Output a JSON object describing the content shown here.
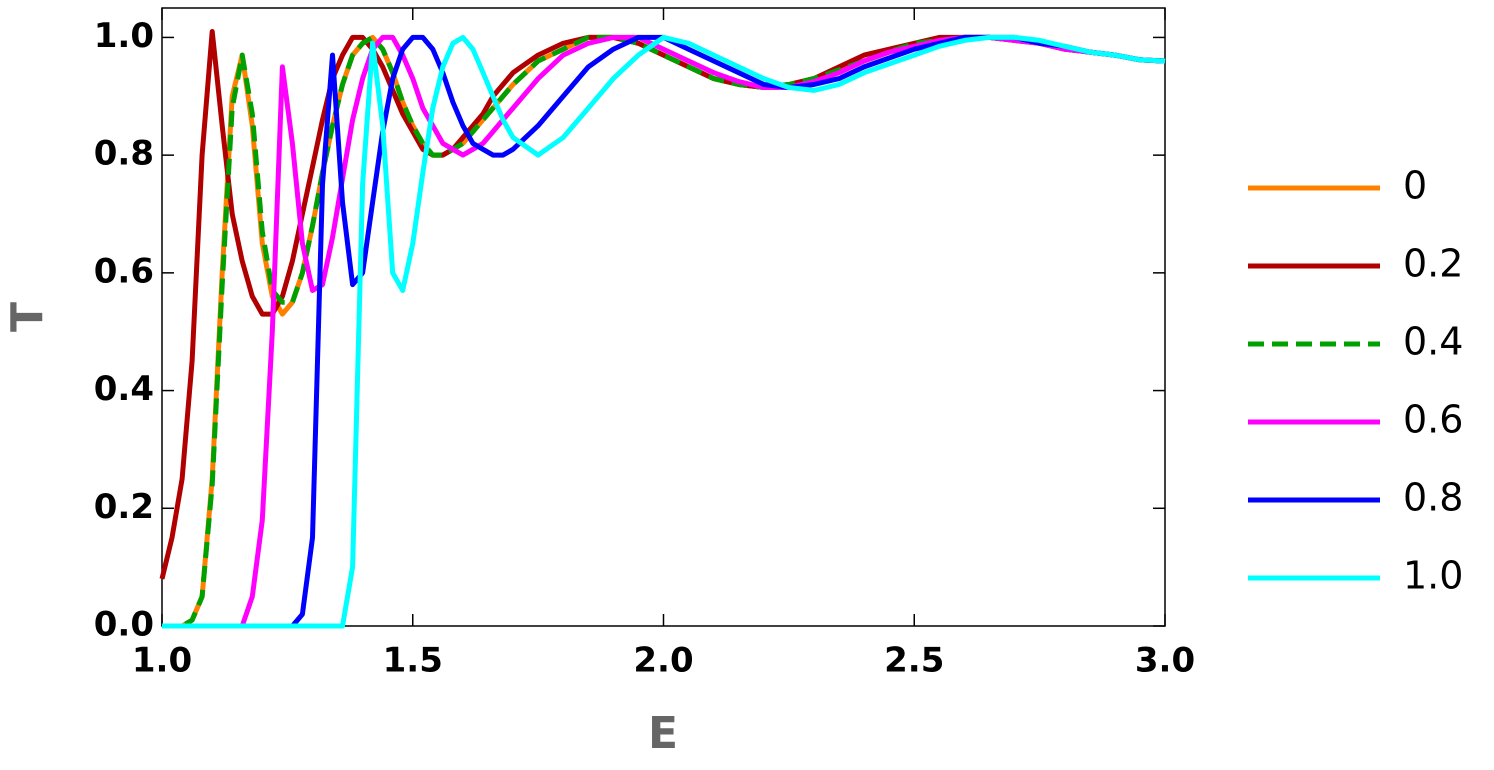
{
  "chart_data": {
    "type": "line",
    "xlabel": "E",
    "ylabel": "T",
    "x": [
      1.0,
      1.02,
      1.04,
      1.06,
      1.08,
      1.1,
      1.12,
      1.14,
      1.16,
      1.18,
      1.2,
      1.22,
      1.24,
      1.26,
      1.28,
      1.3,
      1.32,
      1.34,
      1.36,
      1.38,
      1.4,
      1.42,
      1.44,
      1.46,
      1.48,
      1.5,
      1.52,
      1.54,
      1.56,
      1.58,
      1.6,
      1.62,
      1.64,
      1.66,
      1.68,
      1.7,
      1.75,
      1.8,
      1.85,
      1.9,
      1.95,
      2.0,
      2.05,
      2.1,
      2.15,
      2.2,
      2.25,
      2.3,
      2.35,
      2.4,
      2.45,
      2.5,
      2.55,
      2.6,
      2.65,
      2.7,
      2.75,
      2.8,
      2.85,
      2.9,
      2.95,
      3.0
    ],
    "series": [
      {
        "name": "0",
        "color": "#ff8000",
        "linestyle": "solid",
        "values": [
          0,
          0,
          0,
          0.01,
          0.05,
          0.25,
          0.6,
          0.9,
          0.97,
          0.85,
          0.65,
          0.56,
          0.53,
          0.55,
          0.6,
          0.68,
          0.77,
          0.85,
          0.92,
          0.97,
          0.99,
          1.0,
          0.98,
          0.94,
          0.89,
          0.85,
          0.82,
          0.8,
          0.8,
          0.81,
          0.82,
          0.84,
          0.86,
          0.88,
          0.9,
          0.92,
          0.96,
          0.98,
          1.0,
          1.0,
          0.99,
          0.97,
          0.95,
          0.93,
          0.92,
          0.915,
          0.92,
          0.93,
          0.945,
          0.96,
          0.975,
          0.99,
          0.995,
          1.0,
          1.0,
          0.995,
          0.99,
          0.98,
          0.975,
          0.97,
          0.962,
          0.96
        ]
      },
      {
        "name": "0.2",
        "color": "#b00000",
        "linestyle": "solid",
        "values": [
          0.08,
          0.15,
          0.25,
          0.45,
          0.8,
          1.01,
          0.85,
          0.7,
          0.62,
          0.56,
          0.53,
          0.53,
          0.56,
          0.62,
          0.7,
          0.78,
          0.86,
          0.93,
          0.97,
          1.0,
          1.0,
          0.98,
          0.95,
          0.91,
          0.87,
          0.84,
          0.81,
          0.8,
          0.8,
          0.81,
          0.83,
          0.85,
          0.87,
          0.9,
          0.92,
          0.94,
          0.97,
          0.99,
          1.0,
          1.0,
          0.99,
          0.97,
          0.95,
          0.93,
          0.92,
          0.915,
          0.92,
          0.93,
          0.95,
          0.97,
          0.98,
          0.99,
          1.0,
          1.0,
          1.0,
          0.995,
          0.99,
          0.98,
          0.975,
          0.97,
          0.962,
          0.96
        ]
      },
      {
        "name": "0.4",
        "color": "#00a000",
        "linestyle": "dashed",
        "values": [
          0,
          0,
          0,
          0.01,
          0.05,
          0.24,
          0.58,
          0.88,
          0.97,
          0.87,
          0.67,
          0.57,
          0.55,
          0.55,
          0.6,
          0.68,
          0.77,
          0.85,
          0.92,
          0.97,
          0.99,
          1.0,
          0.98,
          0.94,
          0.89,
          0.85,
          0.82,
          0.8,
          0.8,
          0.81,
          0.82,
          0.84,
          0.86,
          0.88,
          0.9,
          0.92,
          0.96,
          0.98,
          1.0,
          1.0,
          0.99,
          0.97,
          0.95,
          0.93,
          0.92,
          0.915,
          0.92,
          0.93,
          0.945,
          0.96,
          0.975,
          0.99,
          0.995,
          1.0,
          1.0,
          0.995,
          0.99,
          0.98,
          0.975,
          0.97,
          0.962,
          0.96
        ]
      },
      {
        "name": "0.6",
        "color": "#ff00ff",
        "linestyle": "solid",
        "values": [
          0,
          0,
          0,
          0,
          0,
          0,
          0,
          0,
          0,
          0.05,
          0.18,
          0.5,
          0.95,
          0.82,
          0.65,
          0.57,
          0.58,
          0.66,
          0.76,
          0.86,
          0.93,
          0.98,
          1.0,
          1.0,
          0.97,
          0.93,
          0.88,
          0.85,
          0.82,
          0.81,
          0.8,
          0.81,
          0.82,
          0.84,
          0.86,
          0.88,
          0.93,
          0.97,
          0.99,
          1.0,
          1.0,
          0.98,
          0.96,
          0.94,
          0.925,
          0.915,
          0.915,
          0.925,
          0.94,
          0.96,
          0.975,
          0.985,
          0.995,
          1.0,
          1.0,
          0.995,
          0.99,
          0.98,
          0.975,
          0.97,
          0.962,
          0.96
        ]
      },
      {
        "name": "0.8",
        "color": "#0000ff",
        "linestyle": "solid",
        "values": [
          0,
          0,
          0,
          0,
          0,
          0,
          0,
          0,
          0,
          0,
          0,
          0,
          0,
          0,
          0.02,
          0.15,
          0.75,
          0.97,
          0.72,
          0.58,
          0.6,
          0.72,
          0.84,
          0.93,
          0.98,
          1.0,
          1.0,
          0.98,
          0.94,
          0.89,
          0.85,
          0.82,
          0.81,
          0.8,
          0.8,
          0.81,
          0.85,
          0.9,
          0.95,
          0.98,
          1.0,
          1.0,
          0.98,
          0.96,
          0.94,
          0.92,
          0.915,
          0.92,
          0.93,
          0.95,
          0.965,
          0.98,
          0.99,
          1.0,
          1.0,
          1.0,
          0.99,
          0.985,
          0.975,
          0.97,
          0.962,
          0.96
        ]
      },
      {
        "name": "1.0",
        "color": "#00ffff",
        "linestyle": "solid",
        "values": [
          0,
          0,
          0,
          0,
          0,
          0,
          0,
          0,
          0,
          0,
          0,
          0,
          0,
          0,
          0,
          0,
          0,
          0,
          0,
          0.1,
          0.75,
          0.99,
          0.85,
          0.6,
          0.57,
          0.65,
          0.77,
          0.88,
          0.95,
          0.99,
          1.0,
          0.98,
          0.94,
          0.9,
          0.86,
          0.83,
          0.8,
          0.83,
          0.88,
          0.93,
          0.97,
          1.0,
          0.99,
          0.97,
          0.95,
          0.93,
          0.915,
          0.91,
          0.92,
          0.94,
          0.955,
          0.97,
          0.985,
          0.995,
          1.0,
          1.0,
          0.995,
          0.985,
          0.975,
          0.97,
          0.962,
          0.96
        ]
      }
    ],
    "xlim": [
      1.0,
      3.0
    ],
    "xticks": [
      {
        "value": 1,
        "label": "1.0"
      },
      1.5,
      {
        "value": 2,
        "label": "2.0"
      },
      2.5,
      {
        "value": 3,
        "label": "3.0"
      }
    ],
    "ylim": [
      0,
      1.05
    ],
    "yticks": [
      {
        "value": 0,
        "label": "0.0"
      },
      0.2,
      0.4,
      0.6,
      0.8,
      {
        "value": 1,
        "label": "1.0"
      }
    ],
    "grid": false,
    "legend": "right"
  }
}
